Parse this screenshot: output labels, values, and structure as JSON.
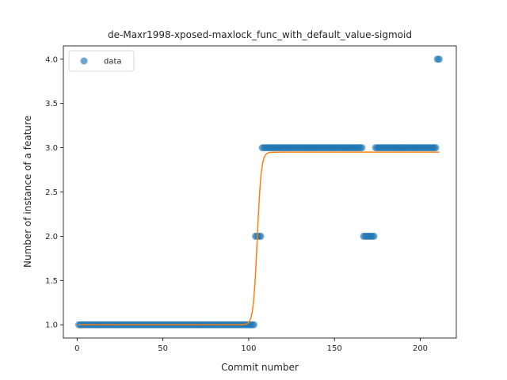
{
  "chart_data": {
    "type": "scatter",
    "title": "de-Maxr1998-xposed-maxlock_func_with_default_value-sigmoid",
    "xlabel": "Commit number",
    "ylabel": "Number of instance of a feature",
    "xlim": [
      -8,
      221
    ],
    "ylim": [
      0.85,
      4.15
    ],
    "xticks": [
      0,
      50,
      100,
      150,
      200
    ],
    "yticks": [
      1.0,
      1.5,
      2.0,
      2.5,
      3.0,
      3.5,
      4.0
    ],
    "legend": {
      "placement": "upper-left",
      "entries": [
        "data"
      ]
    },
    "colors": {
      "data": "#1f77b4",
      "fit": "#ff7f0e"
    },
    "series": [
      {
        "name": "data",
        "kind": "points",
        "segments": [
          {
            "x_from": 1,
            "x_to": 103,
            "y": 1.0
          },
          {
            "x_from": 104,
            "x_to": 107,
            "y": 2.0
          },
          {
            "x_from": 108,
            "x_to": 166,
            "y": 3.0
          },
          {
            "x_from": 167,
            "x_to": 173,
            "y": 2.0
          },
          {
            "x_from": 174,
            "x_to": 209,
            "y": 3.0
          },
          {
            "x_from": 210,
            "x_to": 211,
            "y": 4.0
          }
        ]
      },
      {
        "kind": "sigmoid-fit",
        "x_range": [
          1,
          211
        ],
        "lower": 1.0,
        "upper": 2.95,
        "midpoint": 105,
        "steepness": 0.85
      }
    ]
  }
}
